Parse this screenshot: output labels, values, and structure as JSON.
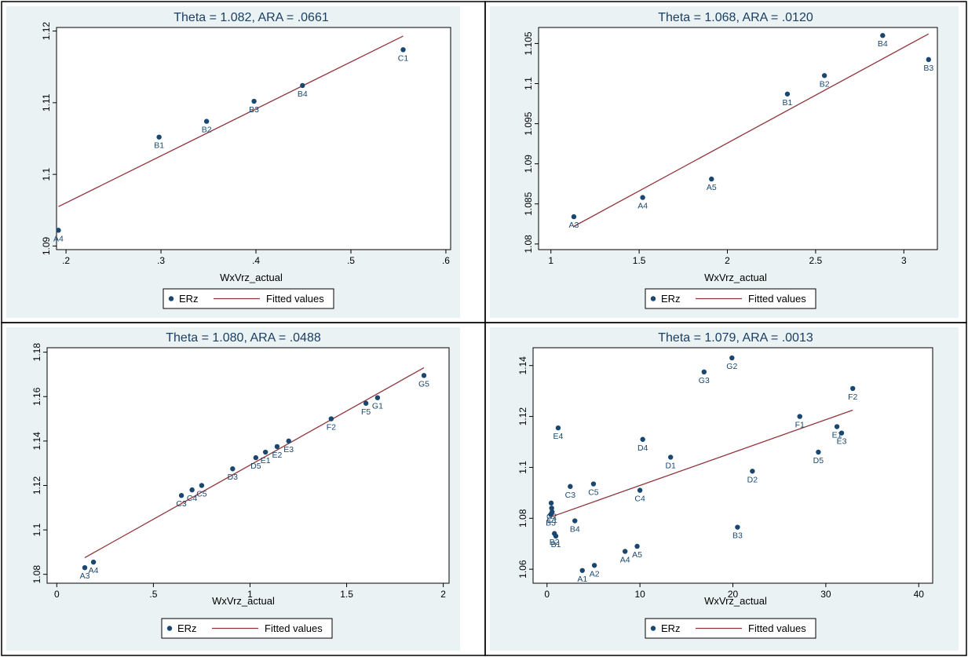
{
  "chart_data": [
    {
      "type": "scatter",
      "title": "Theta =  1.082, ARA = .0661",
      "xlabel": "WxVrz_actual",
      "ylabel": "",
      "xlim": [
        0.19,
        0.605
      ],
      "ylim": [
        1.0895,
        1.1205
      ],
      "xticks": [
        0.2,
        0.3,
        0.4,
        0.5,
        0.6
      ],
      "xtick_labels": [
        ".2",
        ".3",
        ".4",
        ".5",
        ".6"
      ],
      "yticks": [
        1.09,
        1.1,
        1.11,
        1.12
      ],
      "ytick_labels": [
        "1.09",
        "1.1",
        "1.11",
        "1.12"
      ],
      "points": [
        {
          "x": 0.192,
          "y": 1.0922,
          "label": "A4"
        },
        {
          "x": 0.298,
          "y": 1.1052,
          "label": "B1"
        },
        {
          "x": 0.348,
          "y": 1.1074,
          "label": "B2"
        },
        {
          "x": 0.398,
          "y": 1.1102,
          "label": "B3"
        },
        {
          "x": 0.449,
          "y": 1.1124,
          "label": "B4"
        },
        {
          "x": 0.555,
          "y": 1.1174,
          "label": "C1"
        }
      ],
      "fit": [
        [
          0.192,
          1.0955
        ],
        [
          0.555,
          1.1193
        ]
      ],
      "legend": [
        "ERz",
        "Fitted values"
      ]
    },
    {
      "type": "scatter",
      "title": "Theta =  1.068, ARA = .0120",
      "xlabel": "WxVrz_actual",
      "ylabel": "",
      "xlim": [
        0.93,
        3.19
      ],
      "ylim": [
        1.0793,
        1.107
      ],
      "xticks": [
        1,
        1.5,
        2,
        2.5,
        3
      ],
      "xtick_labels": [
        "1",
        "1.5",
        "2",
        "2.5",
        "3"
      ],
      "yticks": [
        1.08,
        1.085,
        1.09,
        1.095,
        1.1,
        1.105
      ],
      "ytick_labels": [
        "1.08",
        "1.085",
        "1.09",
        "1.095",
        "1.1",
        "1.105"
      ],
      "points": [
        {
          "x": 1.13,
          "y": 1.0834,
          "label": "A3"
        },
        {
          "x": 1.52,
          "y": 1.0858,
          "label": "A4"
        },
        {
          "x": 1.91,
          "y": 1.0881,
          "label": "A5"
        },
        {
          "x": 2.34,
          "y": 1.0987,
          "label": "B1"
        },
        {
          "x": 2.55,
          "y": 1.101,
          "label": "B2"
        },
        {
          "x": 2.88,
          "y": 1.106,
          "label": "B4"
        },
        {
          "x": 3.14,
          "y": 1.103,
          "label": "B3"
        }
      ],
      "fit": [
        [
          1.13,
          1.0822
        ],
        [
          3.14,
          1.1062
        ]
      ],
      "legend": [
        "ERz",
        "Fitted values"
      ]
    },
    {
      "type": "scatter",
      "title": "Theta =  1.080, ARA = .0488",
      "xlabel": "WxVrz_actual",
      "ylabel": "",
      "xlim": [
        -0.05,
        2.03
      ],
      "ylim": [
        1.076,
        1.182
      ],
      "xticks": [
        0,
        0.5,
        1,
        1.5,
        2
      ],
      "xtick_labels": [
        "0",
        ".5",
        "1",
        "1.5",
        "2"
      ],
      "yticks": [
        1.08,
        1.1,
        1.12,
        1.14,
        1.16,
        1.18
      ],
      "ytick_labels": [
        "1.08",
        "1.1",
        "1.12",
        "1.14",
        "1.16",
        "1.18"
      ],
      "points": [
        {
          "x": 0.145,
          "y": 1.083,
          "label": "A3"
        },
        {
          "x": 0.19,
          "y": 1.0855,
          "label": "A4"
        },
        {
          "x": 0.645,
          "y": 1.1155,
          "label": "C3"
        },
        {
          "x": 0.7,
          "y": 1.118,
          "label": "C4"
        },
        {
          "x": 0.75,
          "y": 1.12,
          "label": "C5"
        },
        {
          "x": 0.91,
          "y": 1.1275,
          "label": "D3"
        },
        {
          "x": 1.03,
          "y": 1.1325,
          "label": "D5"
        },
        {
          "x": 1.08,
          "y": 1.135,
          "label": "E1"
        },
        {
          "x": 1.14,
          "y": 1.1375,
          "label": "E2"
        },
        {
          "x": 1.2,
          "y": 1.14,
          "label": "E3"
        },
        {
          "x": 1.42,
          "y": 1.15,
          "label": "F2"
        },
        {
          "x": 1.6,
          "y": 1.157,
          "label": "F5"
        },
        {
          "x": 1.66,
          "y": 1.1595,
          "label": "G1"
        },
        {
          "x": 1.9,
          "y": 1.1695,
          "label": "G5"
        }
      ],
      "fit": [
        [
          0.145,
          1.0875
        ],
        [
          1.9,
          1.173
        ]
      ],
      "legend": [
        "ERz",
        "Fitted values"
      ]
    },
    {
      "type": "scatter",
      "title": "Theta =  1.079, ARA = .0013",
      "xlabel": "WxVrz_actual",
      "ylabel": "",
      "xlim": [
        -1.5,
        41.5
      ],
      "ylim": [
        1.0545,
        1.147
      ],
      "xticks": [
        0,
        10,
        20,
        30,
        40
      ],
      "xtick_labels": [
        "0",
        "10",
        "20",
        "30",
        "40"
      ],
      "yticks": [
        1.06,
        1.08,
        1.1,
        1.12,
        1.14
      ],
      "ytick_labels": [
        "1.06",
        "1.08",
        "1.1",
        "1.12",
        "1.14"
      ],
      "points": [
        {
          "x": 0.45,
          "y": 1.086,
          "label": ""
        },
        {
          "x": 0.5,
          "y": 1.084,
          "label": "C2"
        },
        {
          "x": 0.55,
          "y": 1.0825,
          "label": "C1"
        },
        {
          "x": 0.4,
          "y": 1.0815,
          "label": "B5"
        },
        {
          "x": 0.8,
          "y": 1.074,
          "label": "B2"
        },
        {
          "x": 0.95,
          "y": 1.073,
          "label": "B1"
        },
        {
          "x": 1.2,
          "y": 1.1155,
          "label": "E4"
        },
        {
          "x": 2.5,
          "y": 1.0925,
          "label": "C3"
        },
        {
          "x": 3.0,
          "y": 1.079,
          "label": "B4"
        },
        {
          "x": 3.8,
          "y": 1.0595,
          "label": "A1"
        },
        {
          "x": 5.0,
          "y": 1.0935,
          "label": "C5"
        },
        {
          "x": 5.1,
          "y": 1.0615,
          "label": "A2"
        },
        {
          "x": 8.4,
          "y": 1.067,
          "label": "A4"
        },
        {
          "x": 9.7,
          "y": 1.069,
          "label": "A5"
        },
        {
          "x": 10.0,
          "y": 1.091,
          "label": "C4"
        },
        {
          "x": 10.3,
          "y": 1.111,
          "label": "D4"
        },
        {
          "x": 13.3,
          "y": 1.104,
          "label": "D1"
        },
        {
          "x": 16.9,
          "y": 1.1375,
          "label": "G3"
        },
        {
          "x": 19.9,
          "y": 1.143,
          "label": "G2"
        },
        {
          "x": 20.5,
          "y": 1.0765,
          "label": "B3"
        },
        {
          "x": 22.1,
          "y": 1.0985,
          "label": "D2"
        },
        {
          "x": 27.2,
          "y": 1.12,
          "label": "F1"
        },
        {
          "x": 29.2,
          "y": 1.106,
          "label": "D5"
        },
        {
          "x": 31.2,
          "y": 1.116,
          "label": "E1"
        },
        {
          "x": 31.7,
          "y": 1.1135,
          "label": "E3"
        },
        {
          "x": 32.9,
          "y": 1.131,
          "label": "F2"
        }
      ],
      "fit": [
        [
          0.4,
          1.0805
        ],
        [
          32.9,
          1.1225
        ]
      ],
      "legend": [
        "ERz",
        "Fitted values"
      ]
    }
  ]
}
